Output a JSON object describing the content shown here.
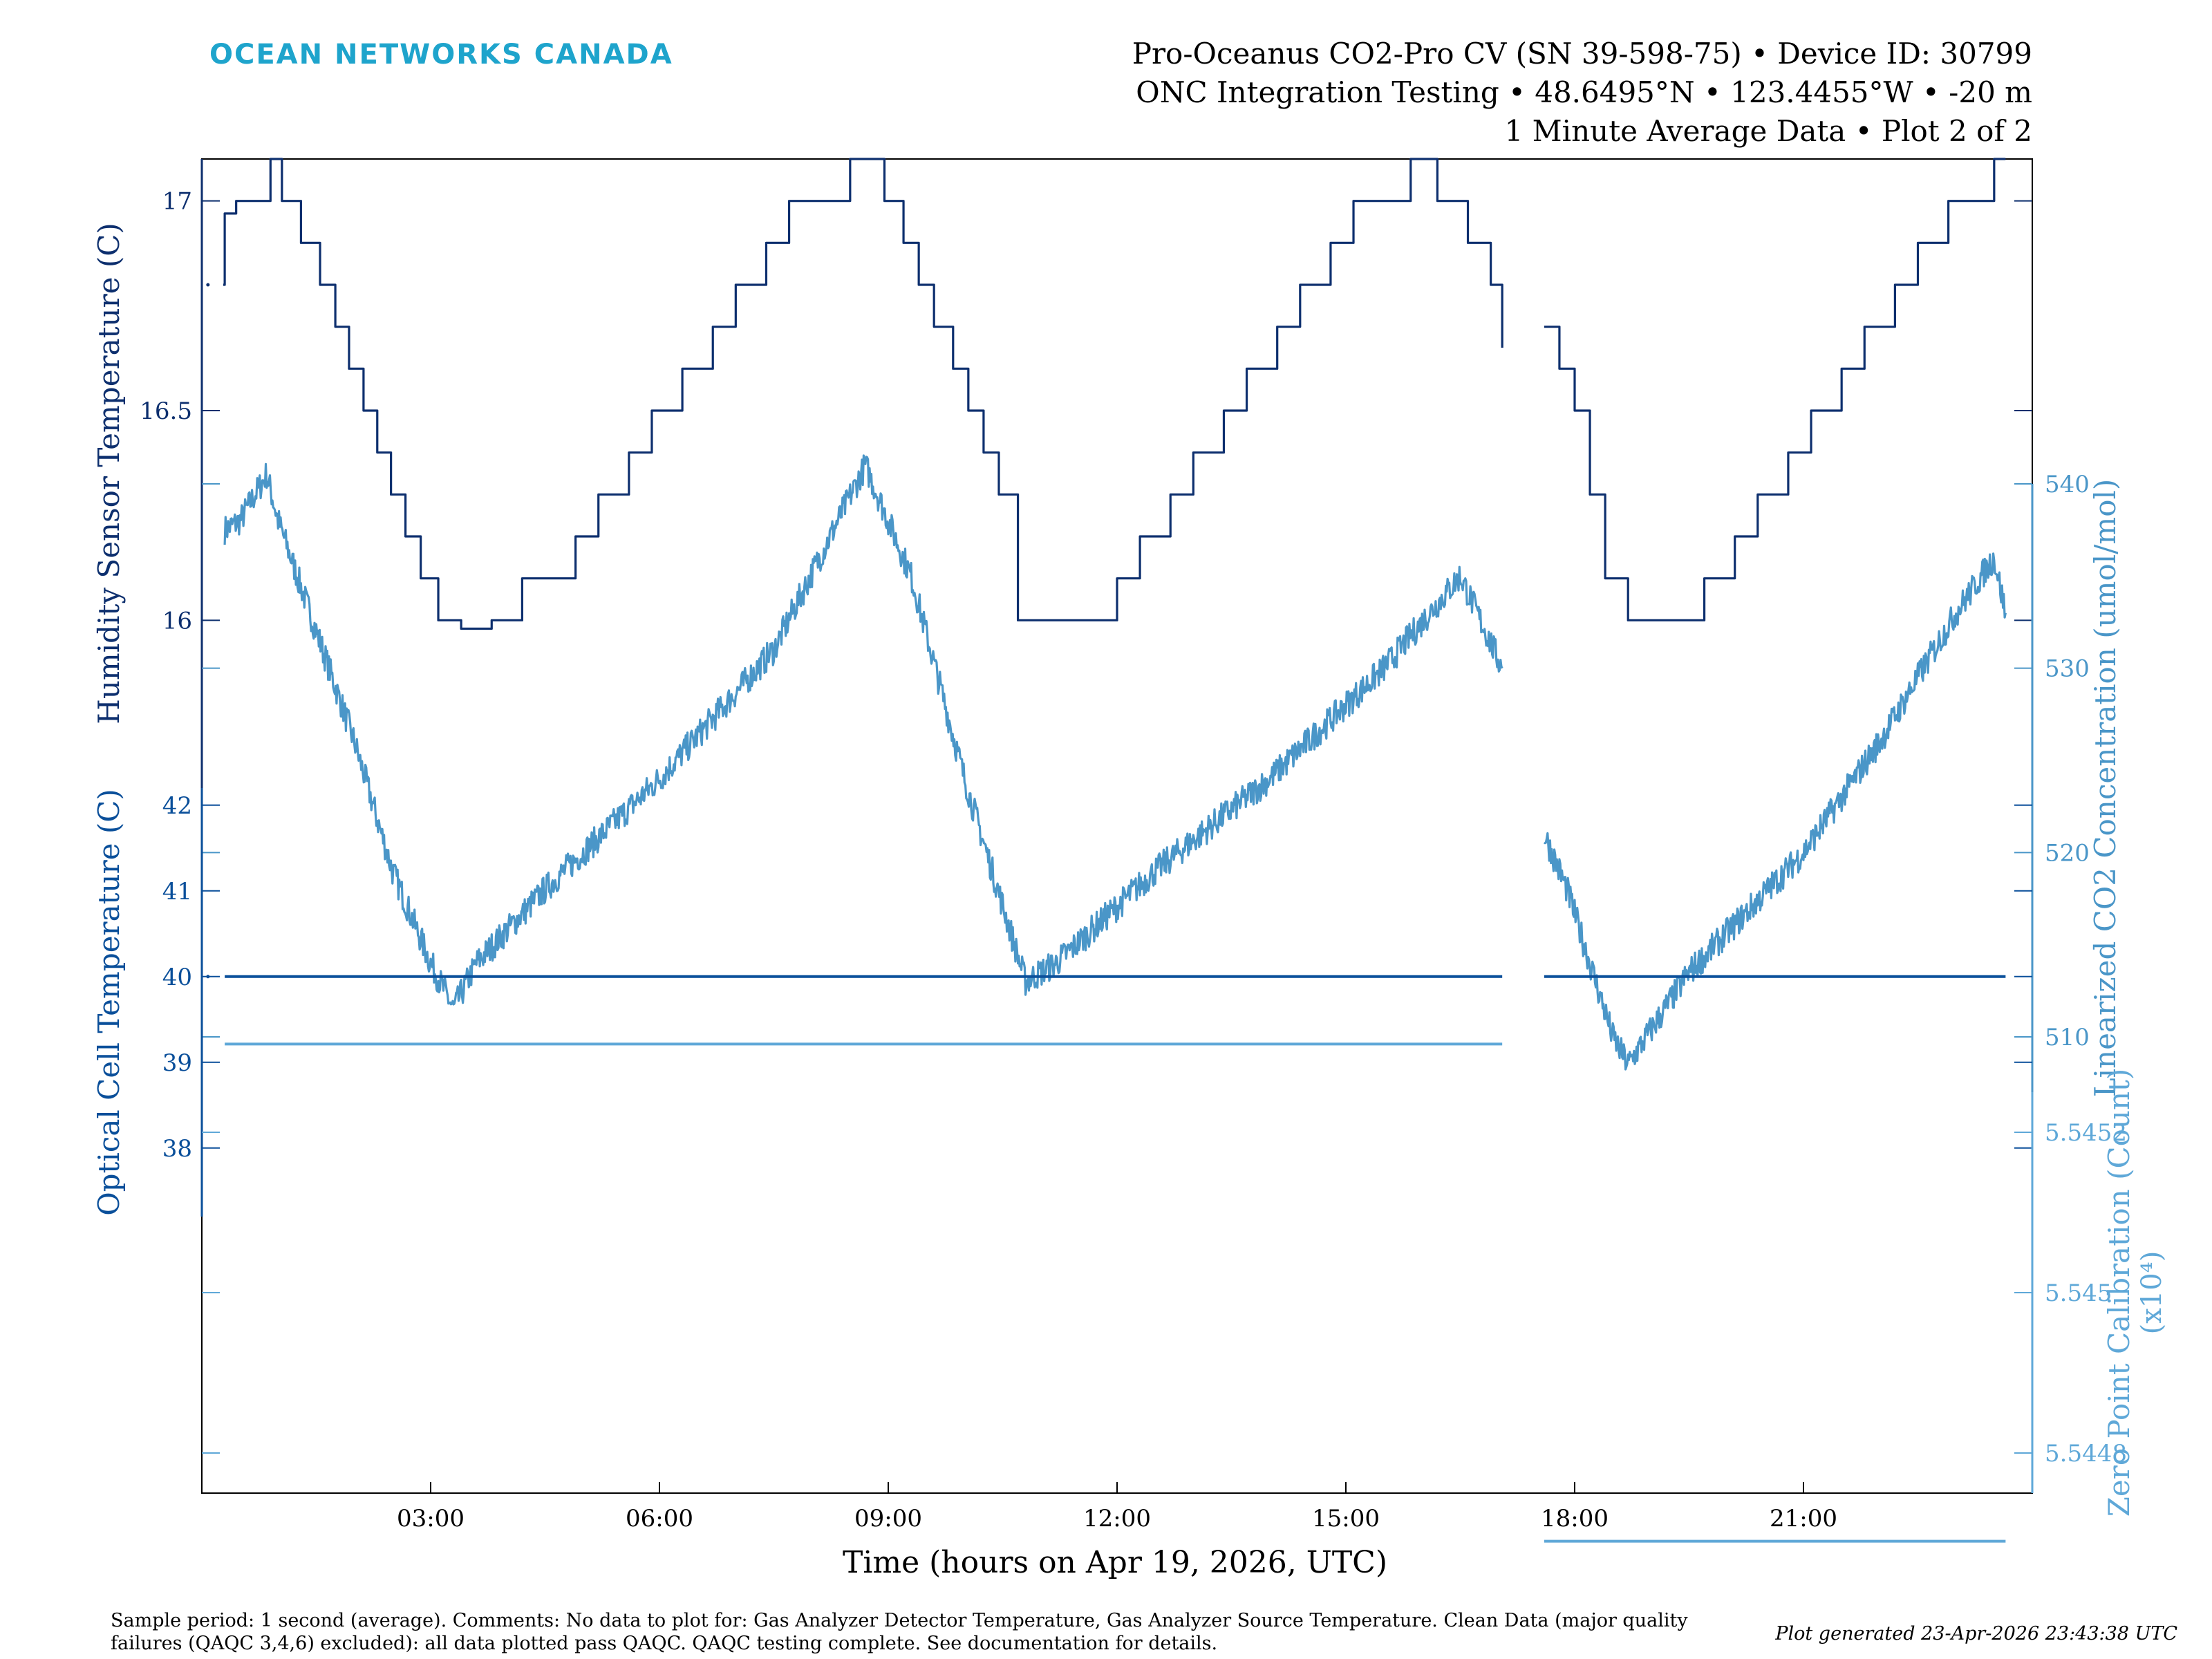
{
  "header": {
    "logo_text": "OCEAN NETWORKS CANADA",
    "title_lines": [
      "Pro-Oceanus CO2-Pro CV (SN 39-598-75) • Device ID: 30799",
      "ONC Integration Testing • 48.6495°N • 123.4455°W • -20 m",
      "1 Minute Average Data • Plot 2 of 2"
    ]
  },
  "footer": {
    "note_lines": [
      "Sample period: 1 second (average). Comments: No data to plot for: Gas Analyzer Detector Temperature, Gas Analyzer Source Temperature. Clean Data (major quality",
      "failures (QAQC 3,4,6) excluded): all data plotted pass QAQC. QAQC testing complete. See documentation for details."
    ],
    "generated": "Plot generated 23-Apr-2026 23:43:38 UTC"
  },
  "colors": {
    "dark_blue": "#0d2f6e",
    "mid_blue": "#0a4f9a",
    "light_blue": "#4a96c8",
    "pale_blue": "#5fa8d8",
    "logo": "#1ea4cc",
    "axis": "#000000"
  },
  "chart_data": {
    "type": "line",
    "xlabel": "Time (hours on Apr 19, 2026, UTC)",
    "xlim": [
      0,
      24
    ],
    "x_ticks": [
      3,
      6,
      9,
      12,
      15,
      18,
      21
    ],
    "x_tick_labels": [
      "03:00",
      "06:00",
      "09:00",
      "12:00",
      "15:00",
      "18:00",
      "21:00"
    ],
    "data_gap_hours": [
      17.1,
      17.6
    ],
    "axes": [
      {
        "id": "humidity",
        "side": "left",
        "label": "Humidity Sensor Temperature (C)",
        "ylim": [
          15.6,
          17.1
        ],
        "ticks": [
          16,
          16.5,
          17
        ],
        "tick_labels": [
          "16",
          "16.5",
          "17"
        ],
        "color": "#0d2f6e"
      },
      {
        "id": "co2",
        "side": "right",
        "label": "Linearized CO2 Concentration (umol/mol)",
        "ylim": [
          507,
          540
        ],
        "ticks": [
          510,
          520,
          530,
          540
        ],
        "tick_labels": [
          "510",
          "520",
          "530",
          "540"
        ],
        "color": "#4a96c8"
      },
      {
        "id": "optical",
        "side": "left",
        "label": "Optical Cell Temperature (C)",
        "ylim": [
          37.2,
          42.2
        ],
        "ticks": [
          38,
          39,
          40,
          41,
          42
        ],
        "tick_labels": [
          "38",
          "39",
          "40",
          "41",
          "42"
        ],
        "color": "#0a4f9a"
      },
      {
        "id": "zero",
        "side": "right",
        "label": "Zero Point Calibration (Count)",
        "sublabel": "(x10⁴)",
        "ylim": [
          5.54475,
          5.54525
        ],
        "ticks": [
          5.5448,
          5.545,
          5.5452
        ],
        "tick_labels": [
          "5.5448",
          "5.545",
          "5.5452"
        ],
        "color": "#5fa8d8"
      }
    ],
    "series": [
      {
        "axis": "humidity",
        "kind": "step",
        "x": [
          0.28,
          0.3,
          0.45,
          0.58,
          0.9,
          1.05,
          1.3,
          1.55,
          1.75,
          1.93,
          2.12,
          2.3,
          2.48,
          2.67,
          2.87,
          3.1,
          3.4,
          3.8,
          4.2,
          4.5,
          4.9,
          5.2,
          5.6,
          5.9,
          6.3,
          6.7,
          7.0,
          7.4,
          7.7,
          8.1,
          8.5,
          8.95,
          9.2,
          9.4,
          9.6,
          9.85,
          10.05,
          10.25,
          10.45,
          10.7,
          11.3,
          12.0,
          12.3,
          12.7,
          13.0,
          13.4,
          13.7,
          14.1,
          14.4,
          14.8,
          15.1,
          15.5,
          15.85,
          16.2,
          16.6,
          16.9,
          17.05
        ],
        "y": [
          16.8,
          16.97,
          17.0,
          17.0,
          17.1,
          17.0,
          16.9,
          16.8,
          16.7,
          16.6,
          16.5,
          16.4,
          16.3,
          16.2,
          16.1,
          16.0,
          15.98,
          16.0,
          16.1,
          16.1,
          16.2,
          16.3,
          16.4,
          16.5,
          16.6,
          16.7,
          16.8,
          16.9,
          17.0,
          17.0,
          17.1,
          17.0,
          16.9,
          16.8,
          16.7,
          16.6,
          16.5,
          16.4,
          16.3,
          16.0,
          16.0,
          16.1,
          16.2,
          16.3,
          16.4,
          16.5,
          16.6,
          16.7,
          16.8,
          16.9,
          17.0,
          17.0,
          17.1,
          17.0,
          16.9,
          16.8,
          16.65
        ]
      },
      {
        "axis": "humidity",
        "kind": "step",
        "x": [
          17.6,
          17.8,
          18.0,
          18.2,
          18.4,
          18.7,
          19.7,
          20.1,
          20.4,
          20.8,
          21.1,
          21.5,
          21.8,
          22.2,
          22.5,
          22.9,
          23.2,
          23.5,
          23.65
        ],
        "y": [
          16.7,
          16.6,
          16.5,
          16.3,
          16.1,
          16.0,
          16.1,
          16.2,
          16.3,
          16.4,
          16.5,
          16.6,
          16.7,
          16.8,
          16.9,
          17.0,
          17.0,
          17.1,
          17.1
        ]
      },
      {
        "axis": "co2",
        "kind": "noisy",
        "x": [
          0.3,
          0.5,
          0.85,
          1.0,
          1.5,
          2.0,
          2.5,
          3.0,
          3.3,
          3.6,
          4.5,
          6.0,
          7.5,
          8.7,
          9.3,
          10.0,
          10.8,
          11.2,
          12.5,
          14.0,
          15.5,
          16.5,
          17.05
        ],
        "y": [
          537.5,
          538.0,
          540.5,
          538.0,
          532.0,
          526.0,
          519.0,
          514.0,
          511.5,
          514.0,
          518.0,
          524.0,
          531.0,
          541.0,
          535.0,
          524.0,
          513.0,
          514.0,
          519.0,
          524.0,
          530.0,
          535.0,
          530.0
        ]
      },
      {
        "axis": "co2",
        "kind": "noisy",
        "x": [
          17.6,
          17.9,
          18.2,
          18.5,
          18.7,
          19.5,
          21.0,
          22.0,
          23.0,
          23.5,
          23.65
        ],
        "y": [
          521.0,
          518.0,
          514.0,
          510.0,
          508.5,
          513.5,
          520.0,
          526.0,
          533.0,
          536.0,
          533.0
        ]
      },
      {
        "axis": "optical",
        "kind": "flat",
        "x": [
          0.3,
          17.05
        ],
        "y": [
          40,
          40
        ]
      },
      {
        "axis": "optical",
        "kind": "flat",
        "x": [
          17.6,
          23.65
        ],
        "y": [
          40,
          40
        ]
      },
      {
        "axis": "zero",
        "kind": "flat",
        "x": [
          0.3,
          17.05
        ],
        "y": [
          5.54531,
          5.54531
        ]
      },
      {
        "axis": "zero",
        "kind": "flat",
        "x": [
          17.6,
          23.65
        ],
        "y": [
          5.54469,
          5.54469
        ]
      }
    ]
  }
}
